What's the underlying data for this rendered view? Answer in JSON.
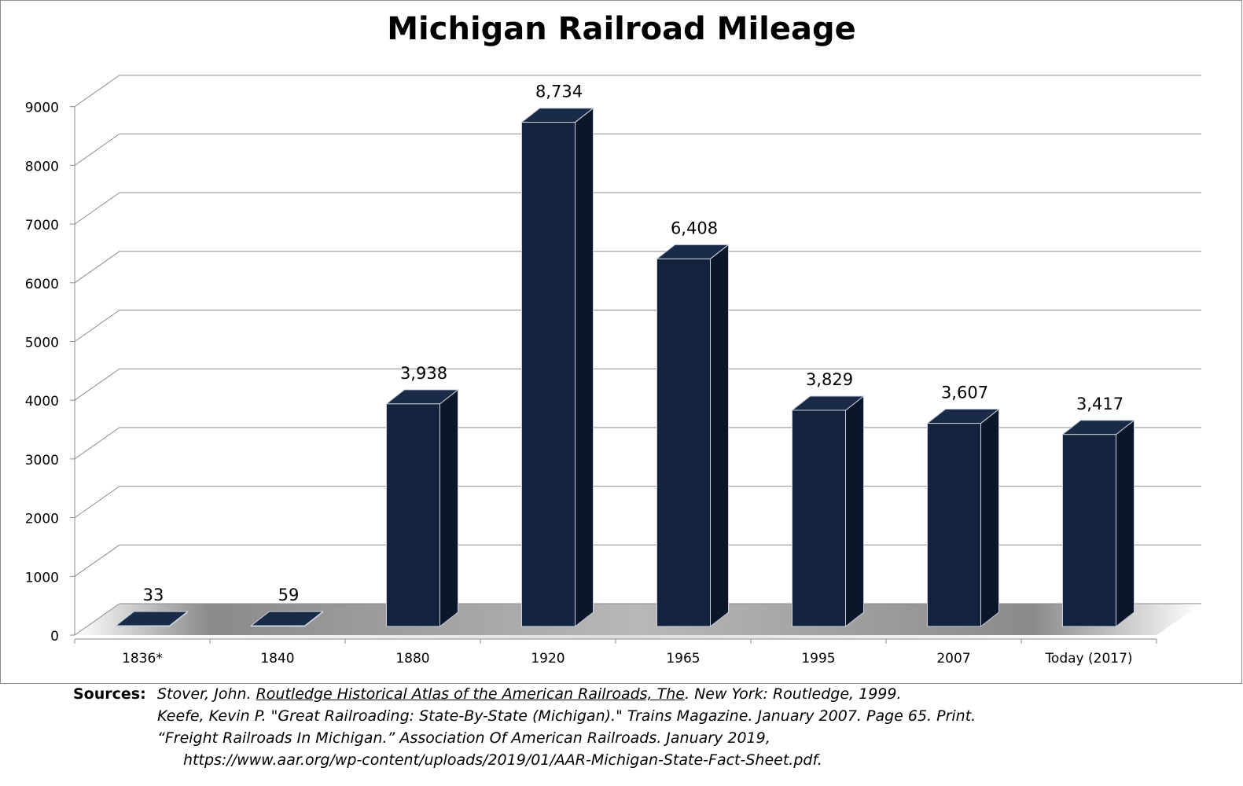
{
  "chart_data": {
    "type": "bar",
    "title": "Michigan Railroad Mileage",
    "categories": [
      "1836*",
      "1840",
      "1880",
      "1920",
      "1965",
      "1995",
      "2007",
      "Today (2017)"
    ],
    "values": [
      33,
      59,
      3938,
      8734,
      6408,
      3829,
      3607,
      3417
    ],
    "value_labels": [
      "33",
      "59",
      "3,938",
      "8,734",
      "6,408",
      "3,829",
      "3,607",
      "3,417"
    ],
    "yticks": [
      0,
      1000,
      2000,
      3000,
      4000,
      5000,
      6000,
      7000,
      8000,
      9000
    ],
    "ylim": [
      0,
      9000
    ],
    "grid": true,
    "bar_color": "#13223d",
    "style": "3d"
  },
  "sources": {
    "label": "Sources:",
    "line1_pre": "Stover, John. ",
    "line1_title": "Routledge Historical Atlas of the American Railroads, The",
    "line1_post": ". New York: Routledge, 1999.",
    "line2": "Keefe, Kevin P. \"Great Railroading: State-By-State (Michigan).\" Trains Magazine. January 2007. Page 65. Print.",
    "line3": "“Freight Railroads In Michigan.” Association Of American Railroads. January 2019,",
    "line4": "https://www.aar.org/wp-content/uploads/2019/01/AAR-Michigan-State-Fact-Sheet.pdf."
  }
}
